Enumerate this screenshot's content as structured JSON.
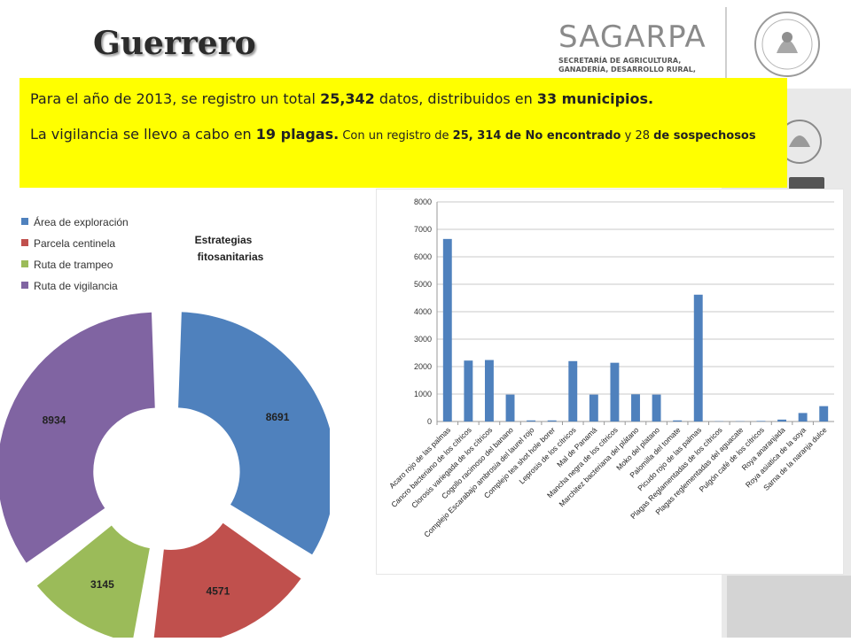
{
  "header": {
    "title": "Guerrero",
    "logo_word": "SAGARPA",
    "logo_sub": [
      "SECRETARÍA DE AGRICULTURA,",
      "GANADERÍA, DESARROLLO RURAL,"
    ]
  },
  "banner": {
    "line1_pre": "Para el año de 2013,  se registro un total ",
    "line1_total": "25,342",
    "line1_mid": " datos, distribuidos en  ",
    "line1_muni": "33 municipios.",
    "line2_pre": "La vigilancia se llevo a cabo en ",
    "line2_plagas": "19 plagas.",
    "line2_mid": " Con un registro de ",
    "line2_noenc": "25, 314 de No encontrado",
    "line2_y": " y 28 ",
    "line2_sosp": "de sospechosos"
  },
  "colors": {
    "banner": "#ffff00",
    "blue": "#4f81bd",
    "red": "#c0504d",
    "green": "#9bbb59",
    "purple": "#8064a2"
  },
  "chart_data": [
    {
      "type": "pie",
      "variant": "exploded-doughnut",
      "title": "Estrategias fitosanitarias",
      "legend_position": "top-left",
      "categories": [
        "Área de  exploración",
        "Parcela centinela",
        "Ruta de trampeo",
        "Ruta de vigilancia"
      ],
      "values": [
        8691,
        4571,
        3145,
        8934
      ],
      "colors": [
        "#4f81bd",
        "#c0504d",
        "#9bbb59",
        "#8064a2"
      ]
    },
    {
      "type": "bar",
      "title": "",
      "xlabel": "",
      "ylabel": "",
      "ylim": [
        0,
        8000
      ],
      "yticks": [
        0,
        1000,
        2000,
        3000,
        4000,
        5000,
        6000,
        7000,
        8000
      ],
      "grid": true,
      "color": "#4f81bd",
      "categories": [
        "Acaro rojo de las palmas",
        "Cancro bacteriano de los cítricos",
        "Clorosis variegada de los cítricos",
        "Cogollo racimoso del banano",
        "Complejo Escarabajo ambrosia del  laurel rojo",
        "Complejo tea shot hole borer",
        "Leprosis de los cítricos",
        "Mal de Panamá",
        "Mancha negra de los cítricos",
        "Marchitez bacteriana del plátano",
        "Moko del platano",
        "Palomilla del tomate",
        "Picudo rojo de las palmas",
        "Plagas Reglamentadas de los cítricos",
        "Plagas reglementadas del aguacate",
        "Pulgón café de los cítricos",
        "Roya anaranjada",
        "Roya asiatica de la soya",
        "Sarna de la naranja dulce"
      ],
      "values": [
        6650,
        2220,
        2240,
        980,
        40,
        40,
        2200,
        980,
        2140,
        990,
        980,
        40,
        4620,
        10,
        10,
        20,
        70,
        310,
        560
      ]
    }
  ]
}
